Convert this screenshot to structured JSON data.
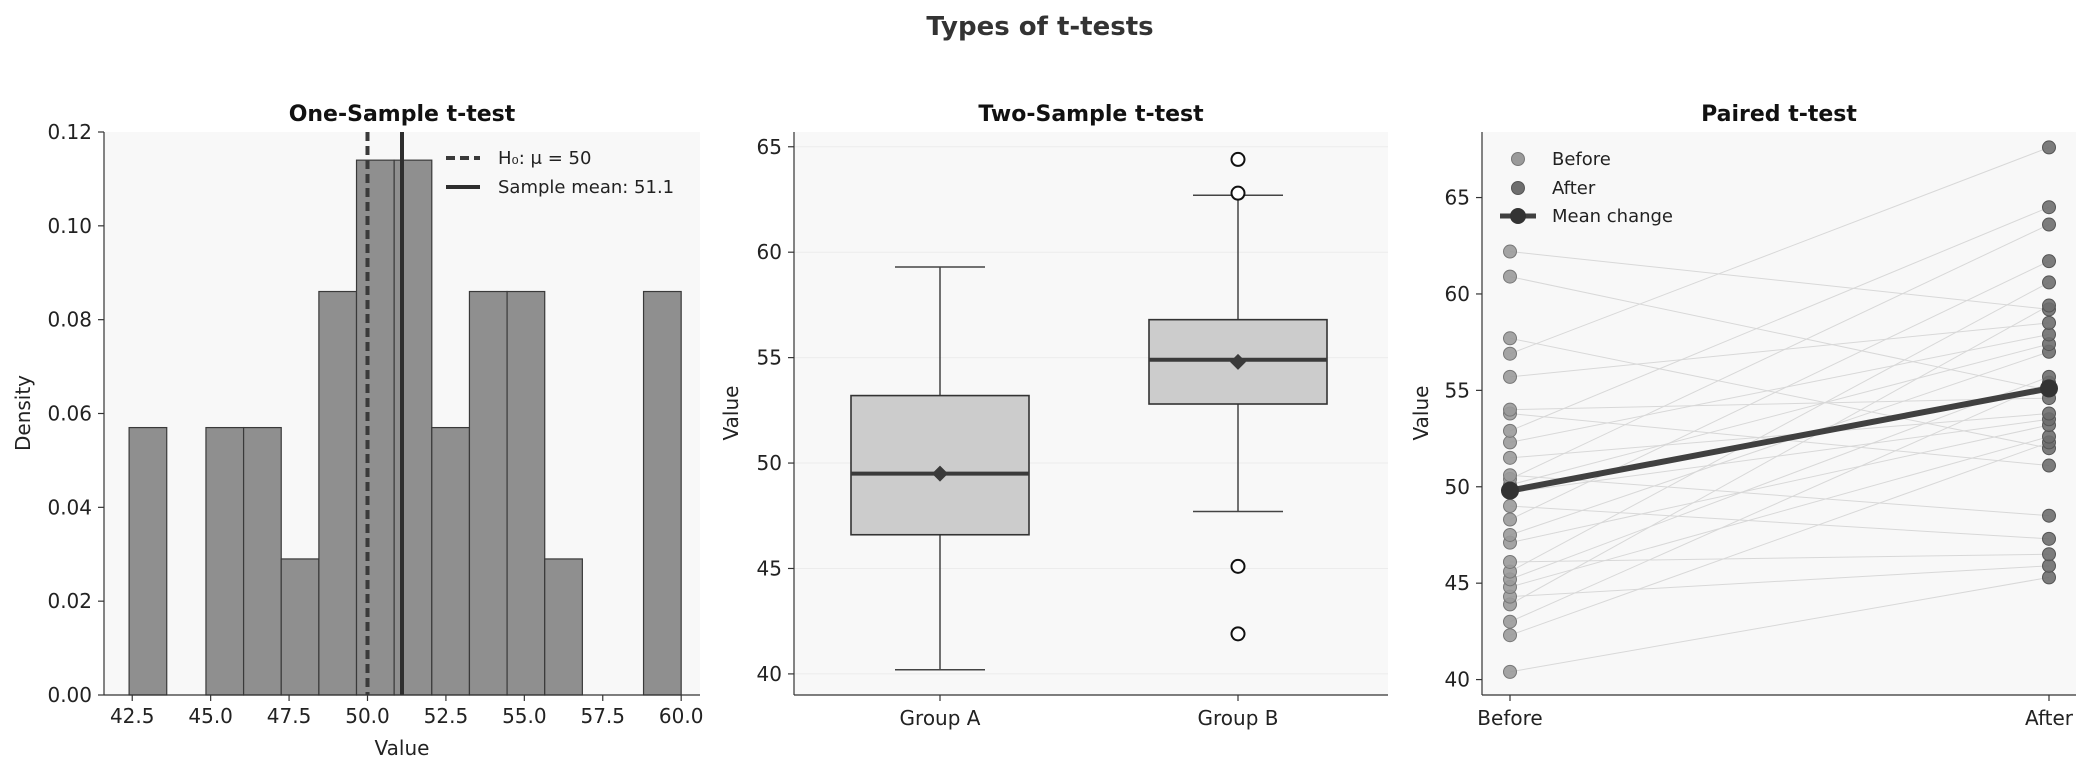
{
  "figure": {
    "suptitle": "Types of t-tests"
  },
  "colors": {
    "panel_bg": "#f8f8f8",
    "bar_fill": "#8f8f8f",
    "bar_edge": "#3a3a3a",
    "dark": "#333333",
    "box_fill": "#cccccc",
    "before_point": "#9a9a9a",
    "after_point": "#6e6e6e",
    "mean_line": "#404040",
    "pair_line": "#d8d8d8"
  },
  "chart_data": [
    {
      "type": "histogram",
      "title": "One-Sample t-test",
      "xlabel": "Value",
      "ylabel": "Density",
      "xlim": [
        41.6,
        60.6
      ],
      "ylim": [
        0,
        0.12
      ],
      "xticks": [
        "42.5",
        "45.0",
        "47.5",
        "50.0",
        "52.5",
        "55.0",
        "57.5",
        "60.0"
      ],
      "xtick_values": [
        42.5,
        45.0,
        47.5,
        50.0,
        52.5,
        55.0,
        57.5,
        60.0
      ],
      "yticks": [
        "0.00",
        "0.02",
        "0.04",
        "0.06",
        "0.08",
        "0.10",
        "0.12"
      ],
      "ytick_values": [
        0,
        0.02,
        0.04,
        0.06,
        0.08,
        0.1,
        0.12
      ],
      "bins": [
        {
          "start": 42.4,
          "end": 43.6,
          "density": 0.057
        },
        {
          "start": 44.85,
          "end": 46.05,
          "density": 0.057
        },
        {
          "start": 46.05,
          "end": 47.25,
          "density": 0.057
        },
        {
          "start": 47.25,
          "end": 48.45,
          "density": 0.029
        },
        {
          "start": 48.45,
          "end": 49.65,
          "density": 0.086
        },
        {
          "start": 49.65,
          "end": 50.85,
          "density": 0.114
        },
        {
          "start": 50.85,
          "end": 52.05,
          "density": 0.114
        },
        {
          "start": 52.05,
          "end": 53.25,
          "density": 0.057
        },
        {
          "start": 53.25,
          "end": 54.45,
          "density": 0.086
        },
        {
          "start": 54.45,
          "end": 55.65,
          "density": 0.086
        },
        {
          "start": 55.65,
          "end": 56.85,
          "density": 0.029
        },
        {
          "start": 58.8,
          "end": 60.0,
          "density": 0.086
        }
      ],
      "reference_lines": [
        {
          "label": "H₀: μ = 50",
          "x": 50.0,
          "style": "dashed"
        },
        {
          "label": "Sample mean: 51.1",
          "x": 51.1,
          "style": "solid"
        }
      ],
      "legend_position": "upper right"
    },
    {
      "type": "box",
      "title": "Two-Sample t-test",
      "xlabel": "",
      "ylabel": "Value",
      "ylim": [
        39,
        65.7
      ],
      "yticks": [
        "40",
        "45",
        "50",
        "55",
        "60",
        "65"
      ],
      "ytick_values": [
        40,
        45,
        50,
        55,
        60,
        65
      ],
      "categories": [
        "Group A",
        "Group B"
      ],
      "boxes": [
        {
          "name": "Group A",
          "whisker_low": 40.2,
          "q1": 46.6,
          "median": 49.5,
          "q3": 53.2,
          "whisker_high": 59.3,
          "mean": 49.5,
          "outliers": []
        },
        {
          "name": "Group B",
          "whisker_low": 47.7,
          "q1": 52.8,
          "median": 54.9,
          "q3": 56.8,
          "whisker_high": 62.7,
          "mean": 54.8,
          "outliers": [
            64.4,
            62.8,
            45.1,
            41.9
          ]
        }
      ]
    },
    {
      "type": "scatter",
      "title": "Paired t-test",
      "xlabel": "",
      "ylabel": "Value",
      "ylim": [
        39.2,
        68.4
      ],
      "categories": [
        "Before",
        "After"
      ],
      "yticks": [
        "40",
        "45",
        "50",
        "55",
        "60",
        "65"
      ],
      "ytick_values": [
        40,
        45,
        50,
        55,
        60,
        65
      ],
      "series": [
        {
          "name": "Before",
          "values": [
            40.4,
            42.3,
            43.0,
            43.9,
            44.3,
            44.8,
            45.2,
            45.6,
            46.1,
            47.1,
            47.5,
            48.3,
            49.0,
            49.7,
            50.1,
            50.4,
            50.6,
            51.5,
            52.3,
            52.9,
            53.8,
            54.0,
            55.7,
            56.9,
            57.7,
            60.9,
            62.2
          ]
        },
        {
          "name": "After",
          "values": [
            45.3,
            45.9,
            46.5,
            47.3,
            48.5,
            51.1,
            52.0,
            52.3,
            52.6,
            53.2,
            53.5,
            53.8,
            54.6,
            55.0,
            55.4,
            55.7,
            57.0,
            57.4,
            57.9,
            58.5,
            59.2,
            59.4,
            60.6,
            61.7,
            63.6,
            64.5,
            67.6
          ]
        }
      ],
      "mean_change": {
        "name": "Mean change",
        "before": 49.8,
        "after": 55.1
      },
      "legend_position": "upper left"
    }
  ]
}
